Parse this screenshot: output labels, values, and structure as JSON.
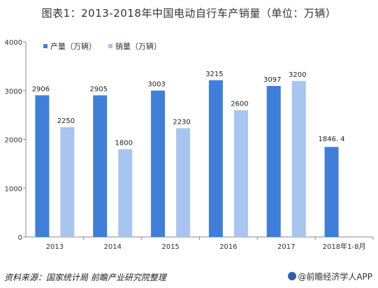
{
  "chart_data": {
    "type": "bar",
    "title": "图表1：2013-2018年中国电动自行车产销量（单位：万辆）",
    "categories": [
      "2013",
      "2014",
      "2015",
      "2016",
      "2017",
      "2018年1-8月"
    ],
    "series": [
      {
        "name": "产量（万辆）",
        "color": "#3f7fd9",
        "values": [
          2906,
          2905,
          3003,
          3215,
          3097,
          1846.4
        ]
      },
      {
        "name": "销量（万辆）",
        "color": "#a7c5ef",
        "values": [
          2250,
          1800,
          2230,
          2600,
          3200,
          null
        ]
      }
    ],
    "data_labels": {
      "produce": [
        "2906",
        "2905",
        "3003",
        "3215",
        "3097",
        "1846. 4"
      ],
      "sales": [
        "2250",
        "1800",
        "2230",
        "2600",
        "3200",
        ""
      ]
    },
    "yticks": [
      "0",
      "1000",
      "2000",
      "3000",
      "4000"
    ],
    "ylim": [
      0,
      4000
    ],
    "legend": "top-left",
    "grid": false
  },
  "footer": {
    "source": "资料来源：国家统计局 前瞻产业研究院整理",
    "brand": "@前瞻经济学人APP"
  }
}
